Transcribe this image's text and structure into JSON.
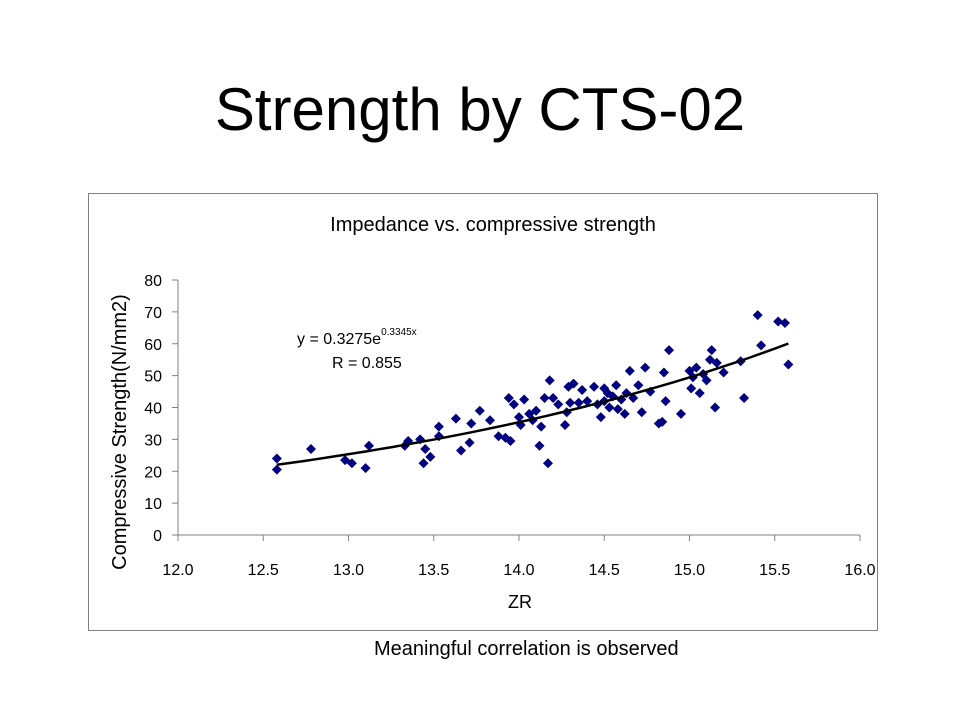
{
  "slide": {
    "title": "Strength by CTS-02",
    "caption": "Meaningful correlation is observed"
  },
  "chart_data": {
    "type": "scatter",
    "title": "Impedance vs. compressive strength",
    "xlabel": "ZR",
    "ylabel": "Compressive Strength(N/mm2)",
    "xlim": [
      12.0,
      16.0
    ],
    "ylim": [
      0,
      80
    ],
    "x_ticks": [
      "12.0",
      "12.5",
      "13.0",
      "13.5",
      "14.0",
      "14.5",
      "15.0",
      "15.5",
      "16.0"
    ],
    "y_ticks": [
      "0",
      "10",
      "20",
      "30",
      "40",
      "50",
      "60",
      "70",
      "80"
    ],
    "marker_color": "#000080",
    "trendline": {
      "type": "exponential",
      "equation_prefix": "y = 0.3275e",
      "equation_exponent": "0.3345x",
      "r_label": "R = 0.855",
      "a": 0.3275,
      "b": 0.3345,
      "color": "#000000"
    },
    "points": [
      [
        12.58,
        24
      ],
      [
        12.58,
        20.5
      ],
      [
        12.78,
        27
      ],
      [
        12.98,
        23.5
      ],
      [
        13.02,
        22.5
      ],
      [
        13.1,
        21
      ],
      [
        13.12,
        28
      ],
      [
        13.33,
        28
      ],
      [
        13.35,
        29.5
      ],
      [
        13.42,
        30
      ],
      [
        13.44,
        22.5
      ],
      [
        13.45,
        27
      ],
      [
        13.48,
        24.5
      ],
      [
        13.53,
        31
      ],
      [
        13.53,
        34
      ],
      [
        13.63,
        36.5
      ],
      [
        13.66,
        26.5
      ],
      [
        13.71,
        29
      ],
      [
        13.72,
        35
      ],
      [
        13.77,
        39
      ],
      [
        13.83,
        36
      ],
      [
        13.88,
        31
      ],
      [
        13.92,
        30.5
      ],
      [
        13.94,
        43
      ],
      [
        13.95,
        29.5
      ],
      [
        13.97,
        41
      ],
      [
        14.0,
        37
      ],
      [
        14.01,
        34.5
      ],
      [
        14.03,
        42.5
      ],
      [
        14.06,
        38
      ],
      [
        14.08,
        36
      ],
      [
        14.1,
        39
      ],
      [
        14.12,
        28
      ],
      [
        14.13,
        34
      ],
      [
        14.15,
        43
      ],
      [
        14.17,
        22.5
      ],
      [
        14.18,
        48.5
      ],
      [
        14.2,
        43
      ],
      [
        14.23,
        41
      ],
      [
        14.27,
        34.5
      ],
      [
        14.28,
        38.5
      ],
      [
        14.29,
        46.5
      ],
      [
        14.3,
        41.5
      ],
      [
        14.32,
        47.5
      ],
      [
        14.35,
        41.5
      ],
      [
        14.37,
        45.5
      ],
      [
        14.4,
        42
      ],
      [
        14.44,
        46.5
      ],
      [
        14.46,
        41
      ],
      [
        14.48,
        37
      ],
      [
        14.5,
        46
      ],
      [
        14.5,
        42
      ],
      [
        14.52,
        44.5
      ],
      [
        14.53,
        40
      ],
      [
        14.55,
        43.5
      ],
      [
        14.57,
        47
      ],
      [
        14.58,
        39.5
      ],
      [
        14.6,
        42.5
      ],
      [
        14.62,
        38
      ],
      [
        14.63,
        44.5
      ],
      [
        14.65,
        51.5
      ],
      [
        14.67,
        43
      ],
      [
        14.7,
        47
      ],
      [
        14.72,
        38.5
      ],
      [
        14.74,
        52.5
      ],
      [
        14.77,
        45
      ],
      [
        14.82,
        35
      ],
      [
        14.84,
        35.5
      ],
      [
        14.85,
        51
      ],
      [
        14.86,
        42
      ],
      [
        14.88,
        58
      ],
      [
        14.95,
        38
      ],
      [
        15.0,
        51.5
      ],
      [
        15.01,
        46
      ],
      [
        15.02,
        49.5
      ],
      [
        15.04,
        52.5
      ],
      [
        15.06,
        44.5
      ],
      [
        15.08,
        50.5
      ],
      [
        15.1,
        48.5
      ],
      [
        15.12,
        55
      ],
      [
        15.13,
        58
      ],
      [
        15.15,
        40
      ],
      [
        15.16,
        54
      ],
      [
        15.2,
        51
      ],
      [
        15.3,
        54.5
      ],
      [
        15.32,
        43
      ],
      [
        15.4,
        69
      ],
      [
        15.42,
        59.5
      ],
      [
        15.52,
        67
      ],
      [
        15.56,
        66.5
      ],
      [
        15.58,
        53.5
      ]
    ]
  }
}
